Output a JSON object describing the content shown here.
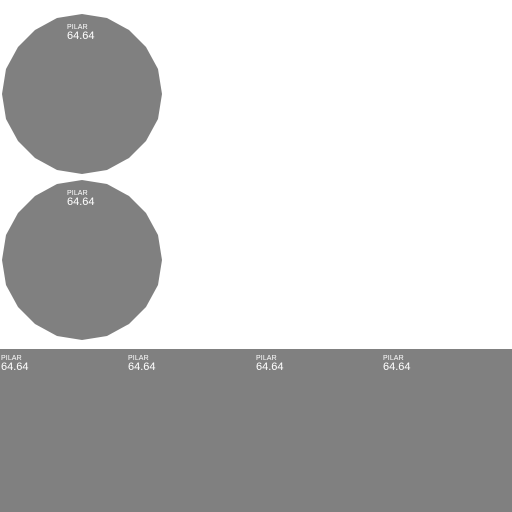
{
  "colors": {
    "background": "#ffffff",
    "shape_fill": "#808080",
    "text": "#ffffff"
  },
  "circles": [
    {
      "kind": "PILAR",
      "value": "64.64"
    },
    {
      "kind": "PILAR",
      "value": "64.64"
    }
  ],
  "panel": {
    "labels": [
      {
        "kind": "PILAR",
        "value": "64.64"
      },
      {
        "kind": "PILAR",
        "value": "64.64"
      },
      {
        "kind": "PILAR",
        "value": "64.64"
      },
      {
        "kind": "PILAR",
        "value": "64.64"
      }
    ]
  }
}
